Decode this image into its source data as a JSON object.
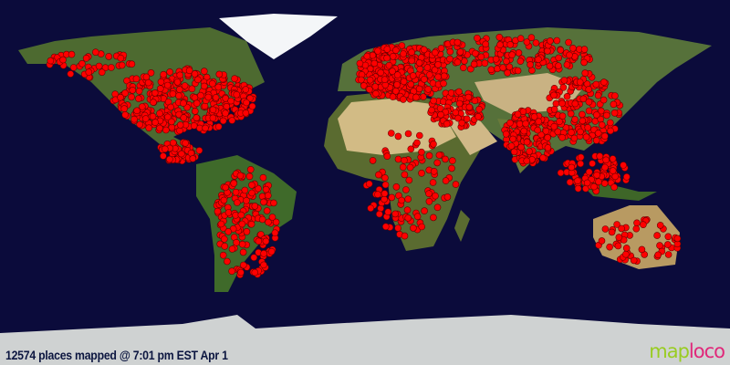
{
  "caption": "12574 places mapped @ 7:01 pm EST Apr 1",
  "logo": {
    "part1": "map",
    "part2": "loco"
  },
  "colors": {
    "ocean": "#0b0b3b",
    "dot": "#ff0000",
    "logo_map": "#99cc22",
    "logo_loco": "#e0287a"
  }
}
